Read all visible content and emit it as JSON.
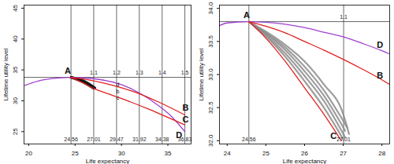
{
  "chart_data": [
    {
      "type": "line",
      "x_label": "Life expectancy",
      "y_label": "Lifetime utility level",
      "xlim": [
        19.5,
        37.5
      ],
      "ylim": [
        23,
        45.5
      ],
      "xticks": [
        20,
        25,
        30,
        35
      ],
      "yticks": [
        25,
        30,
        35,
        40,
        45
      ],
      "vlines": [
        24.56,
        27.01,
        29.47,
        31.92,
        34.38,
        36.83
      ],
      "hline": 33.8,
      "ratio_labels": [
        {
          "value": 1.1,
          "x": 27.01
        },
        {
          "value": 1.2,
          "x": 29.47
        },
        {
          "value": 1.3,
          "x": 31.92
        },
        {
          "value": 1.4,
          "x": 34.38
        },
        {
          "value": 1.5,
          "x": 36.83
        }
      ],
      "series": [
        {
          "color": "#111111",
          "x": [
            24.56,
            26,
            27.0
          ],
          "values": [
            33.8,
            32.9,
            32.0
          ]
        },
        {
          "color": "#111111",
          "x": [
            24.56,
            26,
            27.1
          ],
          "values": [
            33.8,
            33.05,
            32.05
          ]
        },
        {
          "color": "#111111",
          "x": [
            24.56,
            26,
            27.15
          ],
          "values": [
            33.8,
            33.2,
            32.1
          ]
        },
        {
          "name": "D",
          "color": "#a040d0",
          "x": [
            19.6,
            21,
            22.5,
            24.56,
            26,
            28,
            30,
            32,
            34,
            35.5,
            36.83
          ],
          "values": [
            32.5,
            33.2,
            33.6,
            33.8,
            33.71,
            33.36,
            32.6,
            31.2,
            29.2,
            27.3,
            25.0
          ]
        },
        {
          "name": "B",
          "color": "#e0201f",
          "x": [
            24.56,
            26,
            28,
            30,
            32,
            34,
            36.83
          ],
          "values": [
            33.8,
            33.5,
            32.9,
            32.1,
            31.1,
            29.8,
            27.7
          ]
        },
        {
          "name": "C",
          "color": "#e0201f",
          "x": [
            24.56,
            26,
            27,
            29,
            31,
            33,
            35,
            36.83
          ],
          "values": [
            33.8,
            32.8,
            32.0,
            30.9,
            29.8,
            28.6,
            27.3,
            26.1
          ]
        }
      ],
      "annotations": [
        {
          "text": "A",
          "x": 24.2,
          "y": 34.8
        },
        {
          "text": "B",
          "x": 36.9,
          "y": 28.9
        },
        {
          "text": "C",
          "x": 36.9,
          "y": 26.9
        },
        {
          "text": "D",
          "x": 36.2,
          "y": 24.4
        },
        {
          "text": "d",
          "x": 29.6,
          "y": 32.6
        },
        {
          "text": "b",
          "x": 29.6,
          "y": 31.5
        },
        {
          "text": "c",
          "x": 29.6,
          "y": 30.5
        }
      ]
    },
    {
      "type": "line",
      "x_label": "Life expectancy",
      "y_label": "Lifetime utility level",
      "xlim": [
        23.8,
        28.2
      ],
      "ylim": [
        31.95,
        34.05
      ],
      "xticks": [
        24,
        25,
        26,
        27,
        28
      ],
      "yticks": [
        {
          "value": 32,
          "label": "32.0"
        },
        32.5,
        {
          "value": 33,
          "label": "33.0"
        },
        33.5,
        {
          "value": 34,
          "label": "34.0"
        }
      ],
      "vlines": [
        24.56,
        27.01
      ],
      "hline": 33.8,
      "ratio_labels": [
        {
          "value": 1.1,
          "x": 27.01
        }
      ],
      "series": [
        {
          "color": "#8c8c8c",
          "x": [
            24.56,
            25,
            25.5,
            26,
            26.5,
            27.0
          ],
          "values": [
            33.8,
            33.58,
            33.27,
            32.9,
            32.5,
            32.02
          ]
        },
        {
          "color": "#8c8c8c",
          "x": [
            24.56,
            25,
            25.5,
            26,
            26.5,
            27.05
          ],
          "values": [
            33.8,
            33.6,
            33.32,
            32.98,
            32.6,
            32.05
          ]
        },
        {
          "color": "#8c8c8c",
          "x": [
            24.56,
            25,
            25.5,
            26,
            26.5,
            27.05
          ],
          "values": [
            33.8,
            33.62,
            33.37,
            33.05,
            32.68,
            32.15
          ]
        },
        {
          "color": "#8c8c8c",
          "x": [
            24.56,
            25,
            25.5,
            26,
            26.5,
            27.1
          ],
          "values": [
            33.8,
            33.63,
            33.41,
            33.12,
            32.76,
            32.2
          ]
        },
        {
          "color": "#8c8c8c",
          "x": [
            24.56,
            25,
            25.5,
            26,
            26.5,
            27,
            27.15
          ],
          "values": [
            33.8,
            33.65,
            33.45,
            33.2,
            32.85,
            32.4,
            32.1
          ]
        },
        {
          "name": "D",
          "color": "#a040d0",
          "x": [
            23.8,
            24,
            24.56,
            25,
            25.5,
            26,
            26.5,
            27,
            27.5,
            28,
            28.2
          ],
          "values": [
            33.74,
            33.78,
            33.8,
            33.79,
            33.76,
            33.71,
            33.64,
            33.57,
            33.47,
            33.36,
            33.31
          ]
        },
        {
          "name": "B",
          "color": "#e0201f",
          "x": [
            24.56,
            25,
            25.5,
            26,
            26.5,
            27,
            27.5,
            28,
            28.2
          ],
          "values": [
            33.8,
            33.73,
            33.63,
            33.5,
            33.37,
            33.23,
            33.08,
            32.92,
            32.85
          ]
        },
        {
          "name": "C",
          "color": "#e0201f",
          "x": [
            24.56,
            25,
            25.5,
            26,
            26.5,
            26.95
          ],
          "values": [
            33.8,
            33.55,
            33.2,
            32.8,
            32.4,
            32.0
          ]
        }
      ],
      "annotations": [
        {
          "text": "A",
          "x": 24.5,
          "y": 33.9
        },
        {
          "text": "B",
          "x": 27.95,
          "y": 32.98
        },
        {
          "text": "C",
          "x": 26.75,
          "y": 32.07
        },
        {
          "text": "D",
          "x": 27.95,
          "y": 33.45
        }
      ]
    }
  ]
}
